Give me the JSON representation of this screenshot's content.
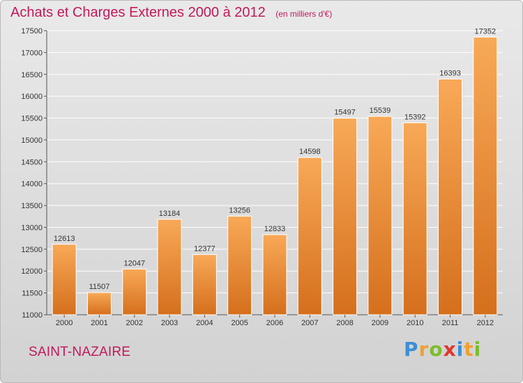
{
  "title": "Achats et Charges Externes 2000 à 2012",
  "unit": "(en milliers d'€)",
  "city": "SAINT-NAZAIRE",
  "logo": {
    "text": "Proxiti",
    "letter_colors": [
      "#3b8fd6",
      "#f0a030",
      "#7cbd2b",
      "#e0372f",
      "#3b8fd6",
      "#f0a030",
      "#7cbd2b"
    ]
  },
  "colors": {
    "bar_top": "#f8a957",
    "bar_bottom": "#d56f1c",
    "axis": "#555555",
    "grid": "#ffffff",
    "title": "#c2185b"
  },
  "chart_data": {
    "type": "bar",
    "categories": [
      "2000",
      "2001",
      "2002",
      "2003",
      "2004",
      "2005",
      "2006",
      "2007",
      "2008",
      "2009",
      "2010",
      "2011",
      "2012"
    ],
    "values": [
      12613,
      11507,
      12047,
      13184,
      12377,
      13256,
      12833,
      14598,
      15497,
      15539,
      15392,
      16393,
      17352
    ],
    "ylim": [
      11000,
      17500
    ],
    "yticks": [
      11000,
      11500,
      12000,
      12500,
      13000,
      13500,
      14000,
      14500,
      15000,
      15500,
      16000,
      16500,
      17000,
      17500
    ],
    "grid": true,
    "title": "Achats et Charges Externes 2000 à 2012",
    "xlabel": "",
    "ylabel": ""
  }
}
